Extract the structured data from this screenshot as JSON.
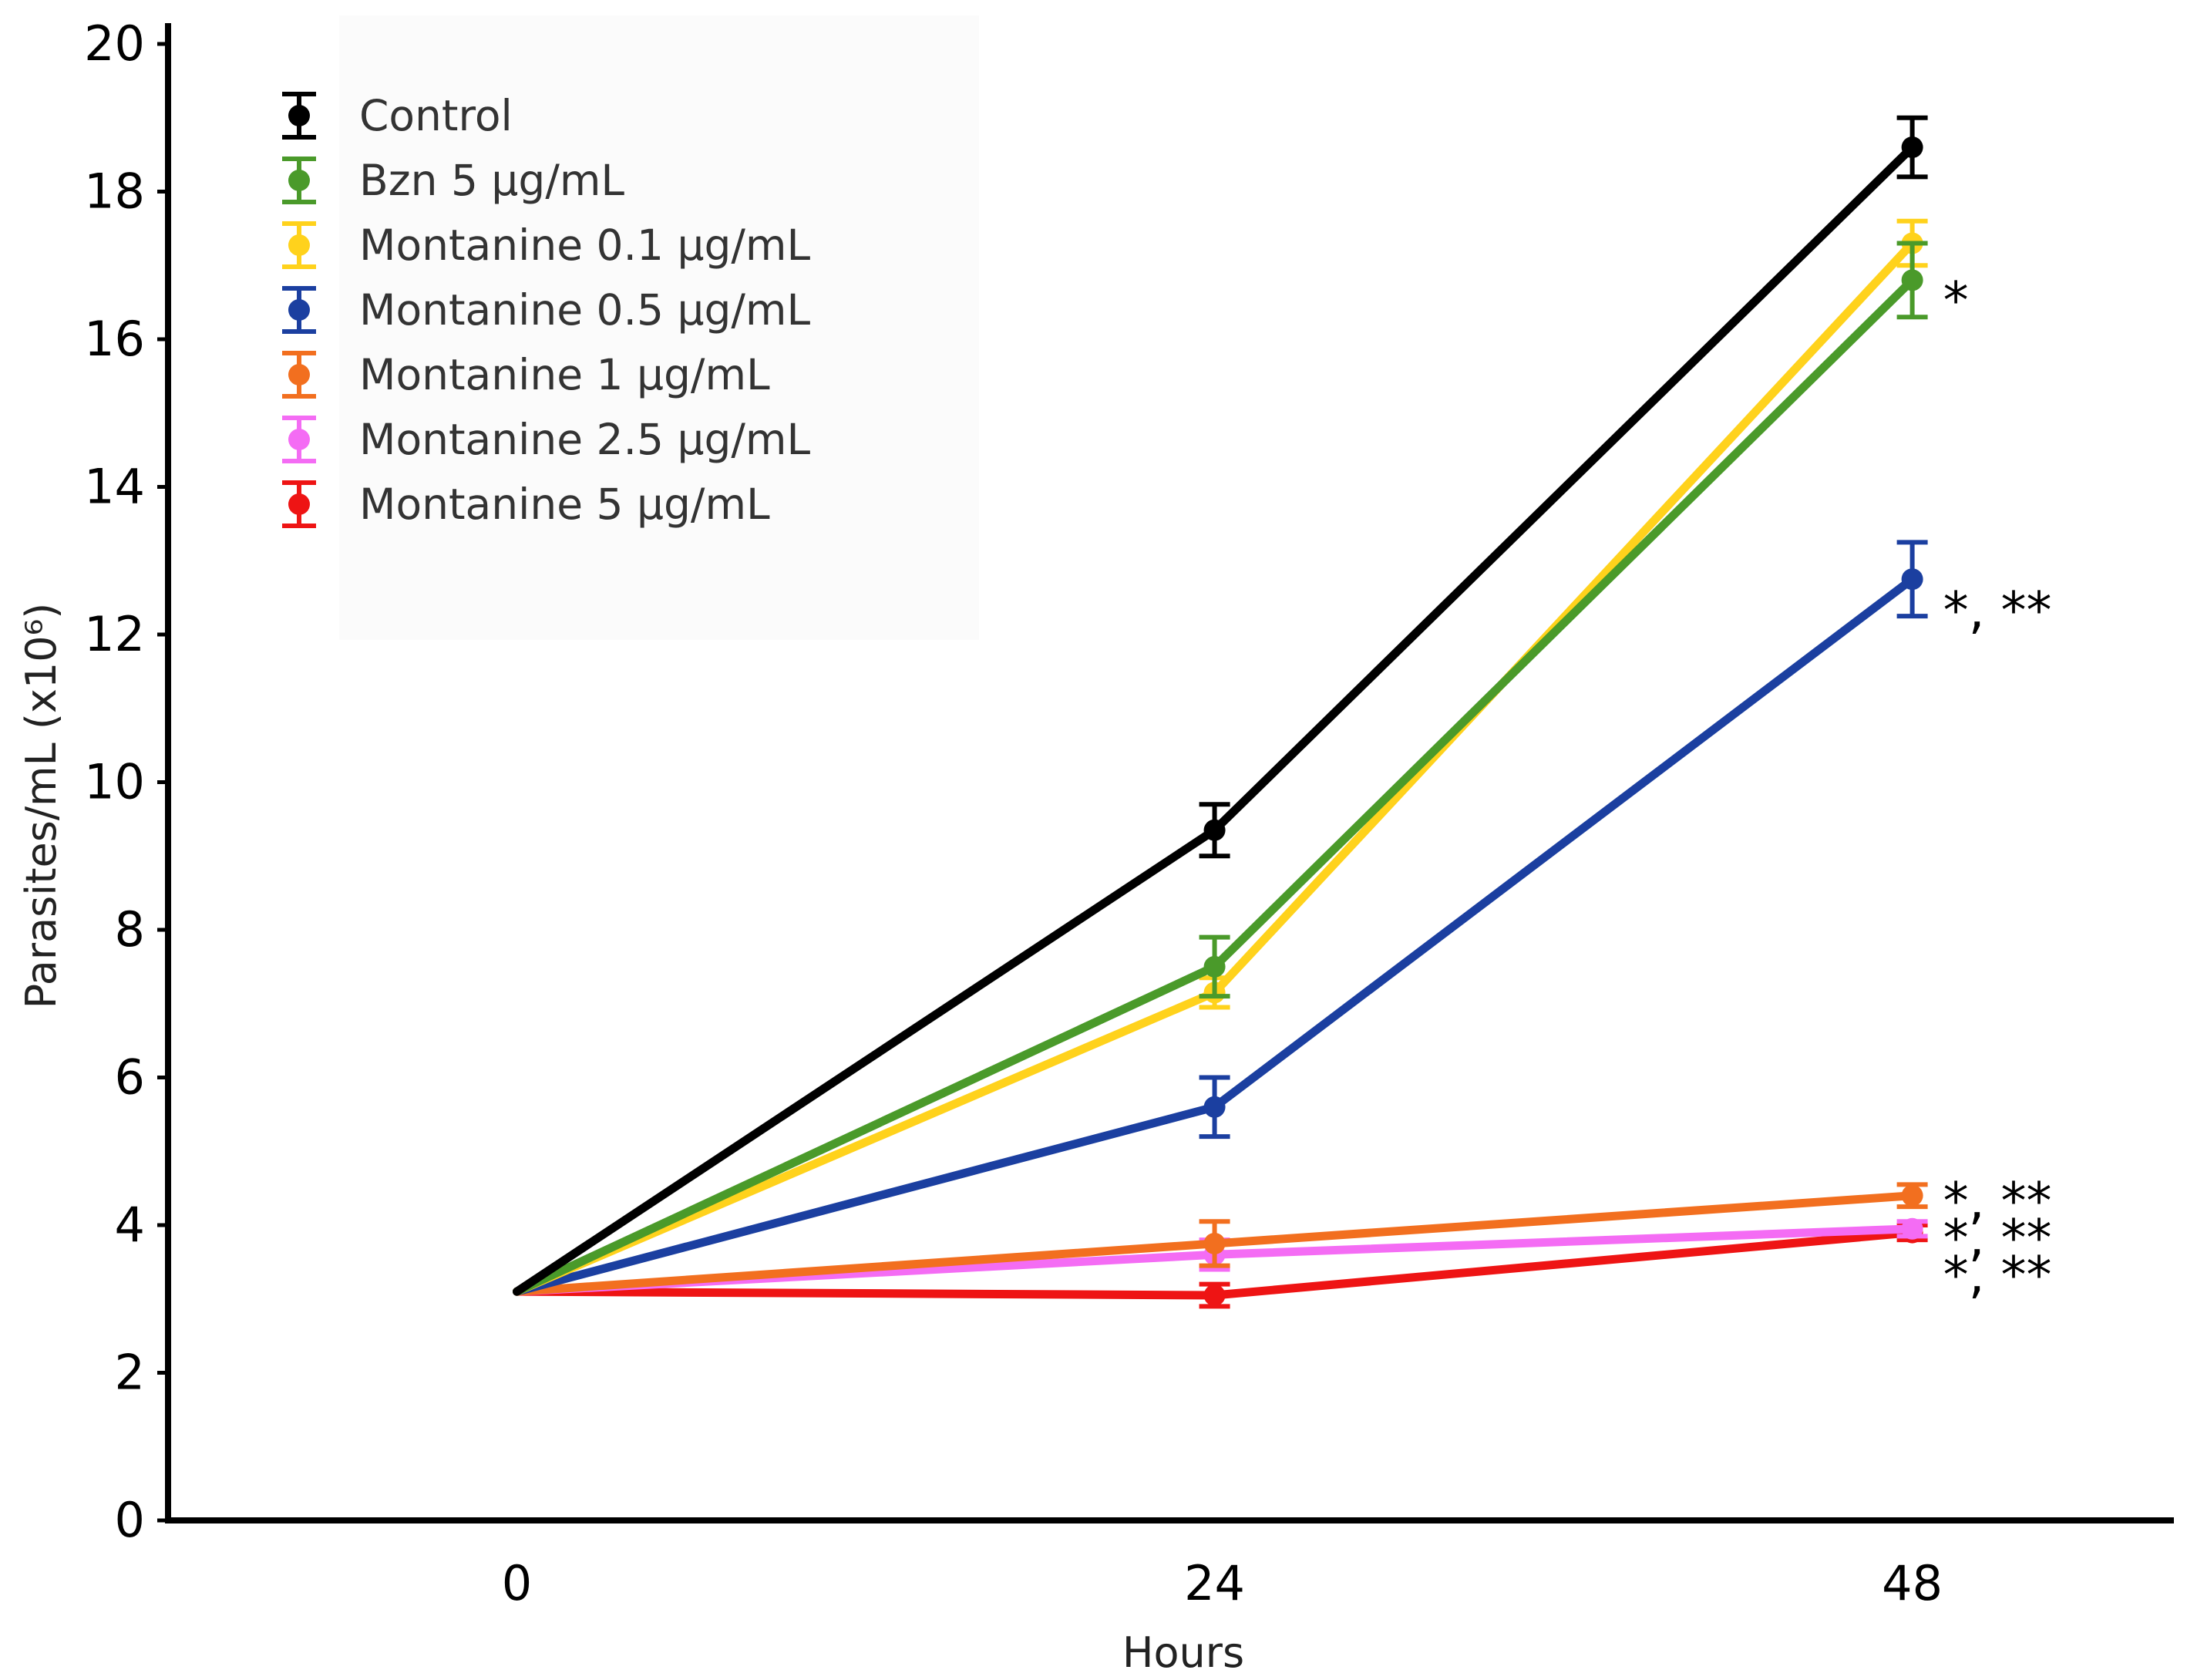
{
  "chart_data": {
    "type": "line",
    "title": "",
    "xlabel": "Hours",
    "ylabel": "Parasites/mL (x10⁶)",
    "x": [
      0,
      24,
      48
    ],
    "x_tick_labels": [
      "0",
      "24",
      "48"
    ],
    "y_ticks": [
      0,
      2,
      4,
      6,
      8,
      10,
      12,
      14,
      16,
      18,
      20
    ],
    "y_tick_labels": [
      "0",
      "2",
      "4",
      "6",
      "8",
      "10",
      "12",
      "14",
      "16",
      "18",
      "20"
    ],
    "xlim": [
      -12,
      57
    ],
    "ylim": [
      0,
      20
    ],
    "grid": false,
    "legend_position": "top-left",
    "series": [
      {
        "name": "Control",
        "color": "#000000",
        "values": [
          3.1,
          9.35,
          18.6
        ],
        "errors": [
          0,
          0.35,
          0.4
        ]
      },
      {
        "name": "Bzn 5 μg/mL",
        "color": "#4a9a2a",
        "values": [
          3.1,
          7.5,
          16.8
        ],
        "errors": [
          0,
          0.4,
          0.5
        ]
      },
      {
        "name": "Montanine 0.1 μg/mL",
        "color": "#ffd21c",
        "values": [
          3.1,
          7.15,
          17.3
        ],
        "errors": [
          0,
          0.2,
          0.3
        ]
      },
      {
        "name": "Montanine 0.5 μg/mL",
        "color": "#1b3fa0",
        "values": [
          3.1,
          5.6,
          12.75
        ],
        "errors": [
          0,
          0.4,
          0.5
        ]
      },
      {
        "name": "Montanine 1 μg/mL",
        "color": "#f26f1f",
        "values": [
          3.1,
          3.75,
          4.4
        ],
        "errors": [
          0,
          0.3,
          0.15
        ]
      },
      {
        "name": "Montanine 2.5 μg/mL",
        "color": "#f46cf4",
        "values": [
          3.1,
          3.6,
          3.95
        ],
        "errors": [
          0,
          0.2,
          0.1
        ]
      },
      {
        "name": "Montanine 5 μg/mL",
        "color": "#ee1414",
        "values": [
          3.1,
          3.05,
          3.9
        ],
        "errors": [
          0,
          0.15,
          0.1
        ]
      }
    ],
    "annotations": [
      {
        "text": "*",
        "x": 48,
        "y": 16.6
      },
      {
        "text": "*, **",
        "x": 48,
        "y": 12.4
      },
      {
        "text": "*, **",
        "x": 48,
        "y": 4.4
      },
      {
        "text": "*, **",
        "x": 48,
        "y": 3.9
      },
      {
        "text": "*, **",
        "x": 48,
        "y": 3.4
      }
    ]
  }
}
